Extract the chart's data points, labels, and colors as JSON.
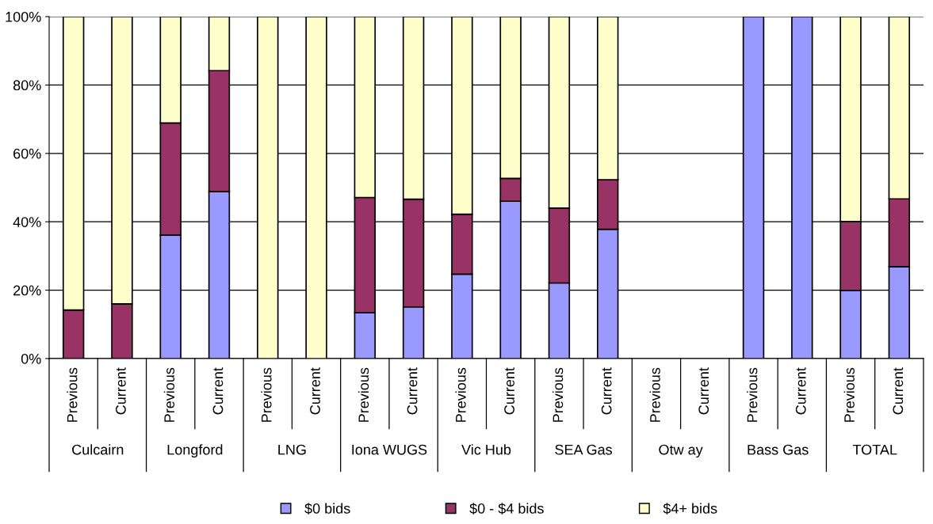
{
  "chart_data": {
    "type": "bar",
    "stacked": true,
    "categories": [
      "Previous",
      "Current",
      "Previous",
      "Current",
      "Previous",
      "Current",
      "Previous",
      "Current",
      "Previous",
      "Current",
      "Previous",
      "Current",
      "Previous",
      "Current",
      "Previous",
      "Current",
      "Previous",
      "Current"
    ],
    "series": [
      {
        "name": "$0 bids",
        "color": "#9999ff",
        "values": [
          0,
          0,
          36.1,
          48.8,
          0,
          0,
          13.4,
          15.1,
          24.7,
          46.0,
          22.1,
          37.8,
          null,
          null,
          100,
          100,
          19.9,
          26.9
        ]
      },
      {
        "name": "$0 - $4 bids",
        "color": "#993366",
        "values": [
          14.2,
          16.0,
          32.8,
          35.4,
          0,
          0,
          33.7,
          31.5,
          17.5,
          6.7,
          21.9,
          14.5,
          null,
          null,
          0,
          0,
          20.2,
          19.8
        ]
      },
      {
        "name": "$4+ bids",
        "color": "#ffffcc",
        "values": [
          85.8,
          84.0,
          31.1,
          15.8,
          100,
          100,
          52.9,
          53.4,
          57.8,
          47.3,
          56.0,
          47.7,
          null,
          null,
          0,
          0,
          59.9,
          53.3
        ]
      }
    ],
    "annotations": [
      "Culcairn",
      "Longford",
      "LNG",
      "Iona WUGS",
      "Vic Hub",
      "SEA Gas",
      "Otw ay",
      "Bass Gas",
      "TOTAL"
    ],
    "ylim": [
      0,
      100
    ],
    "yticks": [
      {
        "value": 0,
        "label": "0%"
      },
      {
        "value": 20,
        "label": "20%"
      },
      {
        "value": 40,
        "label": "40%"
      },
      {
        "value": 60,
        "label": "60%"
      },
      {
        "value": 80,
        "label": "80%"
      },
      {
        "value": 100,
        "label": "100%"
      }
    ],
    "grid": "y",
    "legend": "bottom"
  }
}
